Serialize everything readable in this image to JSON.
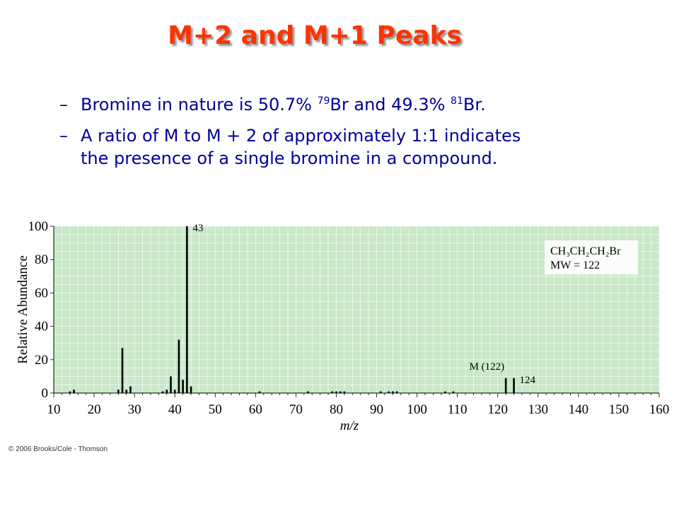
{
  "slide": {
    "title": "M+2 and M+1 Peaks",
    "bullets": [
      {
        "dash": "–",
        "text_a": "Bromine in nature is 50.7% ",
        "sup_a": "79",
        "text_b": "Br and 49.3% ",
        "sup_b": "81",
        "text_c": "Br."
      },
      {
        "dash": "–",
        "line1": "A ratio of M to M + 2 of approximately 1:1 indicates",
        "line2": "the presence of a single bromine in a compound."
      }
    ],
    "copyright": "© 2006 Brooks/Cole - Thomson"
  },
  "chart_data": {
    "type": "bar",
    "xlabel": "m/z",
    "ylabel": "Relative Abundance",
    "xlim": [
      10,
      160
    ],
    "ylim": [
      0,
      100
    ],
    "x_ticks": [
      10,
      20,
      30,
      40,
      50,
      60,
      70,
      80,
      90,
      100,
      110,
      120,
      130,
      140,
      150,
      160
    ],
    "y_ticks": [
      0,
      20,
      40,
      60,
      80,
      100
    ],
    "grid": true,
    "plot_background": "#c8e8c8",
    "bar_color": "#000000",
    "peaks": [
      {
        "mz": 14,
        "abundance": 1
      },
      {
        "mz": 15,
        "abundance": 2
      },
      {
        "mz": 26,
        "abundance": 2
      },
      {
        "mz": 27,
        "abundance": 27
      },
      {
        "mz": 28,
        "abundance": 2
      },
      {
        "mz": 29,
        "abundance": 4
      },
      {
        "mz": 37,
        "abundance": 1
      },
      {
        "mz": 38,
        "abundance": 2
      },
      {
        "mz": 39,
        "abundance": 10
      },
      {
        "mz": 40,
        "abundance": 2
      },
      {
        "mz": 41,
        "abundance": 32
      },
      {
        "mz": 42,
        "abundance": 8
      },
      {
        "mz": 43,
        "abundance": 100
      },
      {
        "mz": 44,
        "abundance": 4
      },
      {
        "mz": 61,
        "abundance": 1
      },
      {
        "mz": 73,
        "abundance": 1
      },
      {
        "mz": 79,
        "abundance": 1
      },
      {
        "mz": 80,
        "abundance": 1
      },
      {
        "mz": 81,
        "abundance": 1
      },
      {
        "mz": 82,
        "abundance": 1
      },
      {
        "mz": 91,
        "abundance": 1
      },
      {
        "mz": 93,
        "abundance": 1
      },
      {
        "mz": 94,
        "abundance": 1
      },
      {
        "mz": 95,
        "abundance": 1
      },
      {
        "mz": 107,
        "abundance": 1
      },
      {
        "mz": 109,
        "abundance": 1
      },
      {
        "mz": 122,
        "abundance": 9
      },
      {
        "mz": 124,
        "abundance": 9
      }
    ],
    "annotations": [
      {
        "text": "43",
        "mz": 43,
        "abundance": 97
      },
      {
        "text": "M (122)",
        "mz": 122,
        "abundance": 14
      },
      {
        "text": "124",
        "mz": 124,
        "abundance": 6
      }
    ],
    "compound": {
      "formula": "CH₃CH₂CH₂Br",
      "mw": "MW = 122"
    }
  }
}
